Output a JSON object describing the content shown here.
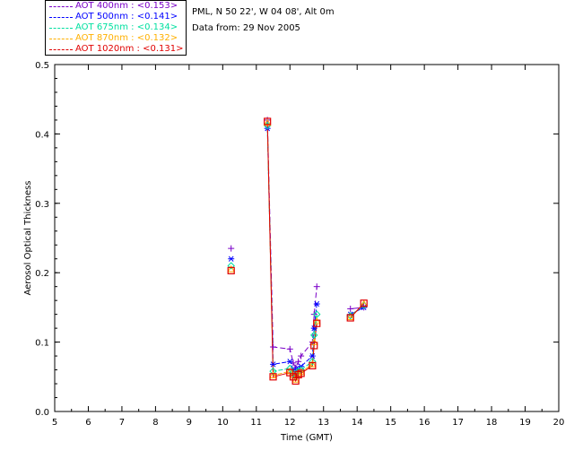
{
  "header": {
    "station": "PML, N 50 22', W 04 08', Alt 0m",
    "data_from": "Data from: 29 Nov 2005"
  },
  "colors": {
    "aot_400": "#7a00c8",
    "aot_500": "#0000ff",
    "aot_675": "#00e0a0",
    "aot_870": "#ffb000",
    "aot_1020": "#e00000"
  },
  "chart_data": {
    "type": "line",
    "xlabel": "Time (GMT)",
    "ylabel": "Aerosol Optical Thickness",
    "xlim": [
      5,
      20
    ],
    "ylim": [
      0.0,
      0.5
    ],
    "x_ticks": [
      "5",
      "6",
      "7",
      "8",
      "9",
      "10",
      "11",
      "12",
      "13",
      "14",
      "15",
      "16",
      "17",
      "18",
      "19",
      "20"
    ],
    "y_ticks": [
      "0.0",
      "0.1",
      "0.2",
      "0.3",
      "0.4",
      "0.5"
    ],
    "legend_position": "top-left",
    "x": [
      10.25,
      11.33,
      11.5,
      12.0,
      12.1,
      12.17,
      12.25,
      12.33,
      12.67,
      12.72,
      12.8,
      13.8,
      14.2
    ],
    "series": [
      {
        "name": "AOT  400nm : <0.153>",
        "marker": "plus",
        "values": [
          0.235,
          0.42,
          0.093,
          0.09,
          0.07,
          0.063,
          0.072,
          0.08,
          0.1,
          0.14,
          0.18,
          0.148,
          0.15
        ]
      },
      {
        "name": "AOT  500nm : <0.141>",
        "marker": "asterisk",
        "values": [
          0.22,
          0.408,
          0.068,
          0.072,
          0.06,
          0.055,
          0.062,
          0.065,
          0.08,
          0.12,
          0.155,
          0.14,
          0.15
        ]
      },
      {
        "name": "AOT  675nm : <0.134>",
        "marker": "diamond",
        "values": [
          0.21,
          0.412,
          0.058,
          0.062,
          0.055,
          0.05,
          0.058,
          0.06,
          0.072,
          0.11,
          0.14,
          0.138,
          0.153
        ]
      },
      {
        "name": "AOT  870nm : <0.132>",
        "marker": "triangle",
        "values": [
          0.205,
          0.416,
          0.052,
          0.058,
          0.052,
          0.046,
          0.055,
          0.057,
          0.068,
          0.1,
          0.13,
          0.136,
          0.155
        ]
      },
      {
        "name": "AOT 1020nm : <0.131>",
        "marker": "square",
        "values": [
          0.203,
          0.418,
          0.05,
          0.056,
          0.05,
          0.044,
          0.053,
          0.055,
          0.066,
          0.095,
          0.127,
          0.135,
          0.156
        ]
      }
    ]
  }
}
